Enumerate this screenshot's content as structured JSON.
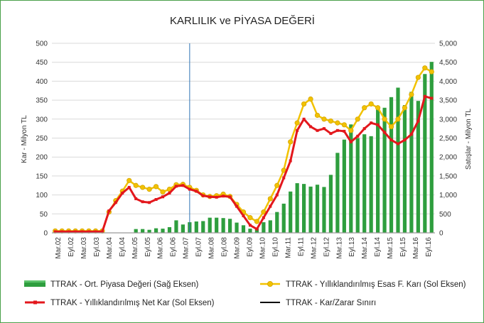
{
  "chart_data": {
    "type": "bar",
    "title": "KARLILIK ve PİYASA DEĞERİ",
    "ylabel_left": "Kar - Milyon TL",
    "ylabel_right": "Satışlar - Milyon TL",
    "ylim_left": [
      0,
      500
    ],
    "ylim_right": [
      0,
      5000
    ],
    "yticks_left": [
      "0",
      "50",
      "100",
      "150",
      "200",
      "250",
      "300",
      "350",
      "400",
      "450",
      "500"
    ],
    "yticks_right": [
      "0",
      "500",
      "1,000",
      "1,500",
      "2,000",
      "2,500",
      "3,000",
      "3,500",
      "4,000",
      "4,500",
      "5,000"
    ],
    "x_tick_labels": [
      "Mar.02",
      "Eyl.02",
      "Mar.03",
      "Eyl.03",
      "Mar.04",
      "Eyl.04",
      "Mar.05",
      "Eyl.05",
      "Mar.06",
      "Eyl.06",
      "Mar.07",
      "Eyl.07",
      "Mar.08",
      "Eyl.08",
      "Mar.09",
      "Eyl.09",
      "Mar.10",
      "Eyl.10",
      "Mar.11",
      "Eyl.11",
      "Mar.12",
      "Eyl.12",
      "Mar.13",
      "Eyl.13",
      "Mar.14",
      "Eyl.14",
      "Mar.15",
      "Eyl.15",
      "Mar.16",
      "Eyl.16"
    ],
    "grid": true,
    "legend_position": "bottom",
    "vertical_marker_index": 20,
    "series": [
      {
        "name": "TTRAK - Ort. Piyasa Değeri (Sağ Eksen)",
        "type": "bar",
        "axis": "right",
        "color": "#2e9e3e",
        "values": [
          0,
          0,
          0,
          0,
          0,
          0,
          0,
          0,
          0,
          0,
          0,
          0,
          100,
          100,
          80,
          120,
          110,
          150,
          330,
          220,
          280,
          300,
          310,
          400,
          400,
          390,
          370,
          270,
          200,
          110,
          120,
          280,
          330,
          550,
          770,
          1090,
          1310,
          1290,
          1220,
          1270,
          1210,
          1530,
          2110,
          2460,
          2860,
          2500,
          2600,
          2550,
          3270,
          3300,
          3580,
          3830,
          3370,
          3720,
          3480,
          4190,
          4510
        ]
      },
      {
        "name": "TTRAK - Yıllıklandırılmış Esas F. Karı (Sol Eksen)",
        "type": "line",
        "axis": "left",
        "color": "#f2c200",
        "marker": "circle",
        "values": [
          5,
          5,
          5,
          5,
          5,
          5,
          5,
          5,
          55,
          85,
          110,
          138,
          125,
          120,
          115,
          122,
          108,
          115,
          127,
          128,
          120,
          112,
          100,
          96,
          98,
          102,
          96,
          75,
          55,
          40,
          30,
          55,
          90,
          125,
          165,
          240,
          290,
          340,
          353,
          310,
          300,
          295,
          290,
          285,
          270,
          300,
          330,
          340,
          330,
          300,
          280,
          300,
          330,
          365,
          410,
          435,
          425
        ]
      },
      {
        "name": "TTRAK - Yıllıklandırılmış Net Kar (Sol Eksen)",
        "type": "line",
        "axis": "left",
        "color": "#e3171c",
        "marker": "square",
        "values": [
          3,
          3,
          3,
          3,
          3,
          3,
          3,
          3,
          58,
          80,
          105,
          120,
          90,
          82,
          80,
          88,
          95,
          105,
          123,
          125,
          115,
          110,
          98,
          95,
          94,
          97,
          95,
          70,
          45,
          20,
          10,
          40,
          70,
          100,
          145,
          190,
          270,
          300,
          280,
          270,
          275,
          262,
          270,
          268,
          240,
          255,
          275,
          290,
          285,
          265,
          245,
          235,
          245,
          260,
          295,
          360,
          355
        ]
      },
      {
        "name": "TTRAK - Kar/Zarar Sınırı",
        "type": "line",
        "axis": "left",
        "color": "#000000",
        "values": [
          0,
          0
        ]
      }
    ]
  }
}
